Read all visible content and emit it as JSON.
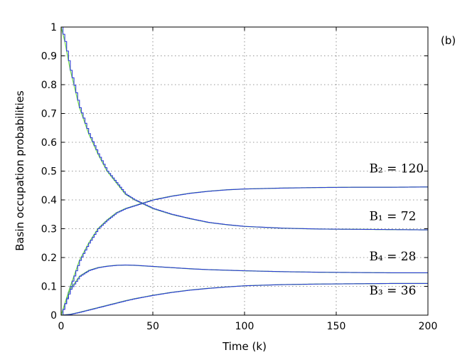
{
  "chart_data": {
    "type": "line",
    "title": "",
    "panel_label": "(b)",
    "xlabel": "Time (k)",
    "ylabel": "Basin occupation probabilities",
    "xlim": [
      0,
      200
    ],
    "ylim": [
      0,
      1
    ],
    "xticks": [
      0,
      50,
      100,
      150,
      200
    ],
    "yticks": [
      0,
      0.1,
      0.2,
      0.3,
      0.4,
      0.5,
      0.6,
      0.7,
      0.8,
      0.9,
      1
    ],
    "grid": true,
    "series_styles": [
      {
        "style": "staircase",
        "color": "#2b3bd6"
      },
      {
        "style": "smooth",
        "color": "#7ce24a"
      }
    ],
    "annotations": [
      {
        "text": "B₂ = 120",
        "x": 168,
        "y": 0.495
      },
      {
        "text": "B₁ = 72",
        "x": 168,
        "y": 0.33
      },
      {
        "text": "B₄ = 28",
        "x": 168,
        "y": 0.19
      },
      {
        "text": "B₃ = 36",
        "x": 168,
        "y": 0.072
      }
    ],
    "series": [
      {
        "x": [
          0,
          2,
          5,
          10,
          15,
          20,
          25,
          30,
          35,
          40,
          45,
          50,
          60,
          70,
          80,
          90,
          100,
          120,
          140,
          160,
          180,
          200
        ],
        "values": [
          1.0,
          0.95,
          0.85,
          0.72,
          0.63,
          0.56,
          0.5,
          0.46,
          0.42,
          0.4,
          0.385,
          0.37,
          0.35,
          0.335,
          0.322,
          0.314,
          0.308,
          0.302,
          0.299,
          0.298,
          0.297,
          0.296
        ]
      },
      {
        "x": [
          0,
          2,
          5,
          10,
          15,
          20,
          25,
          30,
          35,
          40,
          45,
          50,
          60,
          70,
          80,
          90,
          100,
          120,
          140,
          160,
          180,
          200
        ],
        "values": [
          0.0,
          0.04,
          0.1,
          0.19,
          0.25,
          0.3,
          0.33,
          0.355,
          0.37,
          0.38,
          0.39,
          0.4,
          0.413,
          0.423,
          0.43,
          0.435,
          0.438,
          0.441,
          0.443,
          0.444,
          0.444,
          0.445
        ]
      },
      {
        "x": [
          0,
          2,
          5,
          10,
          15,
          20,
          25,
          30,
          35,
          40,
          45,
          50,
          60,
          70,
          80,
          90,
          100,
          120,
          140,
          160,
          180,
          200
        ],
        "values": [
          0.0,
          0.04,
          0.09,
          0.135,
          0.155,
          0.165,
          0.17,
          0.173,
          0.174,
          0.173,
          0.171,
          0.169,
          0.165,
          0.161,
          0.158,
          0.156,
          0.154,
          0.151,
          0.149,
          0.148,
          0.147,
          0.147
        ]
      },
      {
        "x": [
          0,
          5,
          10,
          15,
          20,
          25,
          30,
          35,
          40,
          45,
          50,
          60,
          70,
          80,
          90,
          100,
          120,
          140,
          160,
          180,
          200
        ],
        "values": [
          0.0,
          0.003,
          0.01,
          0.018,
          0.026,
          0.034,
          0.042,
          0.05,
          0.057,
          0.063,
          0.069,
          0.079,
          0.087,
          0.093,
          0.098,
          0.102,
          0.106,
          0.108,
          0.109,
          0.11,
          0.11
        ]
      }
    ]
  }
}
